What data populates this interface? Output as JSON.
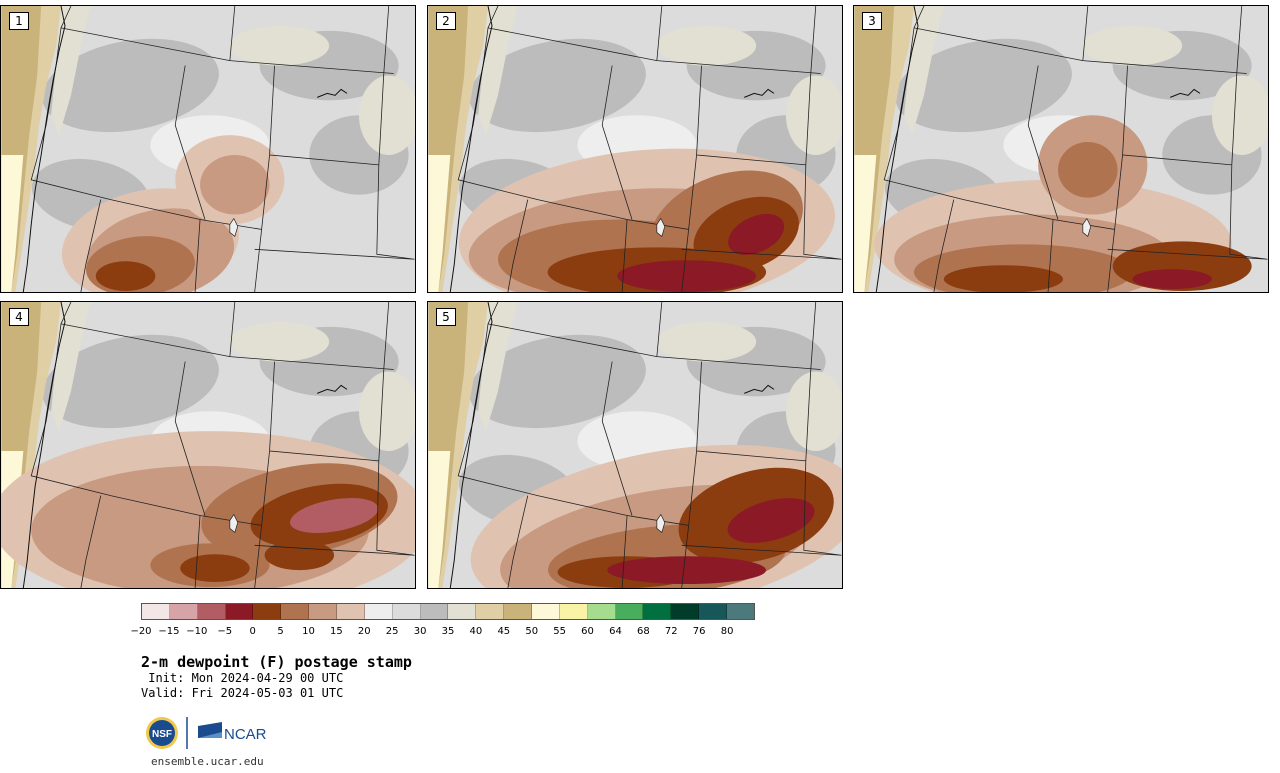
{
  "panels": [
    {
      "label": "1"
    },
    {
      "label": "2"
    },
    {
      "label": "3"
    },
    {
      "label": "4"
    },
    {
      "label": "5"
    }
  ],
  "colorbar": {
    "colors": [
      "#f2e6e6",
      "#d6a3a6",
      "#b25c63",
      "#8b1a26",
      "#8c3d10",
      "#b07350",
      "#c89a82",
      "#e0c2b0",
      "#eeeeee",
      "#dcdcdc",
      "#bcbcbc",
      "#e2e0d2",
      "#e0cfa4",
      "#c9b37a",
      "#fcf8d8",
      "#f8f3a6",
      "#a6dc8e",
      "#48ad5c",
      "#007040",
      "#003c2a",
      "#17575a",
      "#4c7a7c"
    ],
    "ticks": [
      "−20",
      "−15",
      "−10",
      "−5",
      "0",
      "5",
      "10",
      "15",
      "20",
      "25",
      "30",
      "35",
      "40",
      "45",
      "50",
      "55",
      "60",
      "64",
      "68",
      "72",
      "76",
      "80"
    ]
  },
  "title": "2-m dewpoint (F) postage stamp",
  "init": " Init: Mon 2024-04-29 00 UTC",
  "valid": "Valid: Fri 2024-05-03 01 UTC",
  "logo": {
    "nsf_text": "NSF",
    "ncar_text": "NCAR"
  },
  "url": "ensemble.ucar.edu"
}
